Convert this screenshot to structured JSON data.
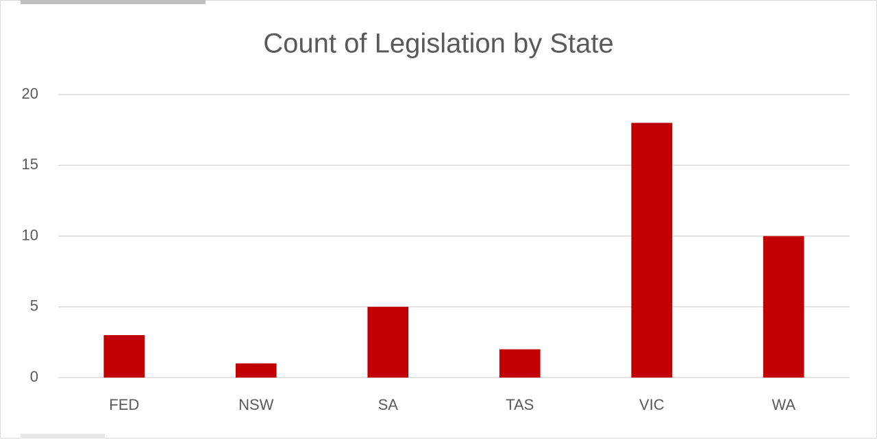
{
  "chart_data": {
    "type": "bar",
    "title": "Count of Legislation by State",
    "categories": [
      "FED",
      "NSW",
      "SA",
      "TAS",
      "VIC",
      "WA"
    ],
    "values": [
      3,
      1,
      5,
      2,
      18,
      10
    ],
    "color": "#c00000",
    "ylim": [
      0,
      20
    ],
    "yticks": [
      0,
      5,
      10,
      15,
      20
    ],
    "grid": true
  }
}
